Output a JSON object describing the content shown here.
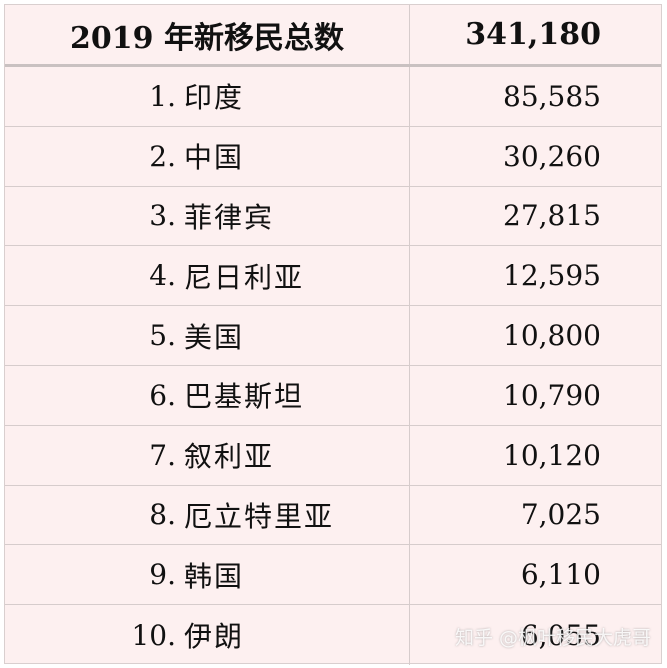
{
  "header": {
    "title": "2019 年新移民总数",
    "total": "341,180"
  },
  "rows": [
    {
      "rank": "1.",
      "country": "印度",
      "value": "85,585"
    },
    {
      "rank": "2.",
      "country": "中国",
      "value": "30,260"
    },
    {
      "rank": "3.",
      "country": "菲律宾",
      "value": "27,815"
    },
    {
      "rank": "4.",
      "country": "尼日利亚",
      "value": "12,595"
    },
    {
      "rank": "5.",
      "country": "美国",
      "value": "10,800"
    },
    {
      "rank": "6.",
      "country": "巴基斯坦",
      "value": "10,790"
    },
    {
      "rank": "7.",
      "country": "叙利亚",
      "value": "10,120"
    },
    {
      "rank": "8.",
      "country": "厄立特里亚",
      "value": "7,025"
    },
    {
      "rank": "9.",
      "country": "韩国",
      "value": "6,110"
    },
    {
      "rank": "10.",
      "country": "伊朗",
      "value": "6,055"
    }
  ],
  "watermark": "知乎 @枫叶移民大虎哥"
}
